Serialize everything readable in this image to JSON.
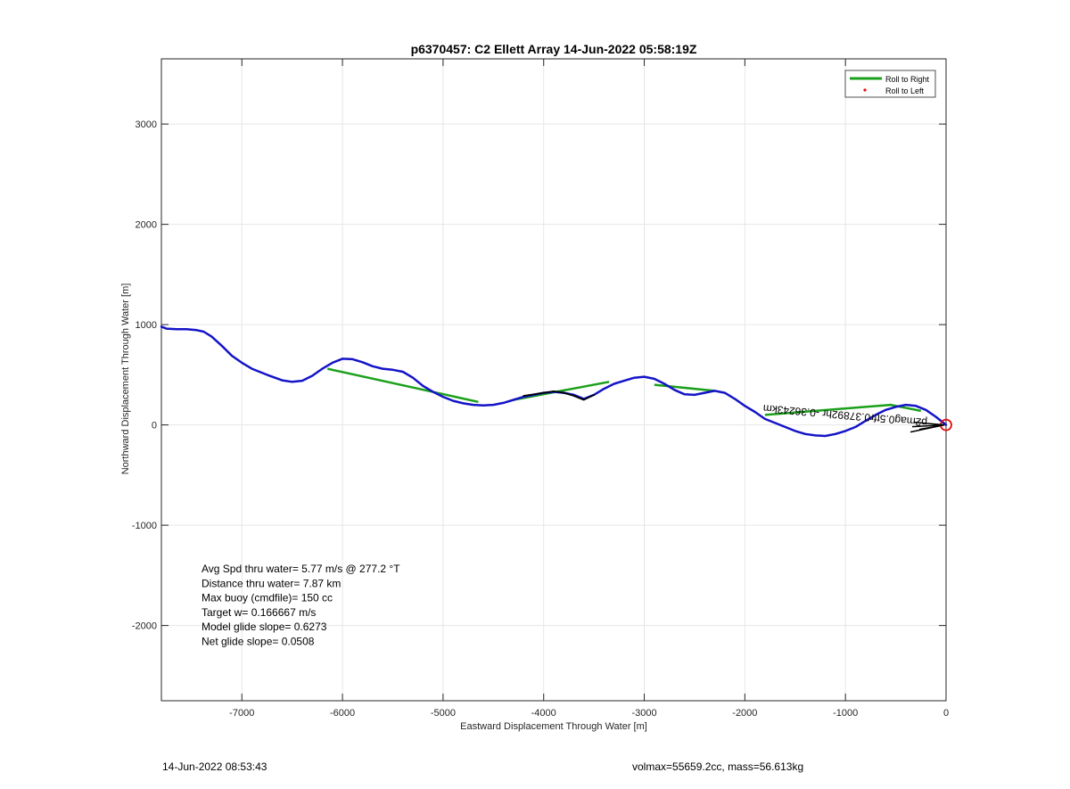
{
  "chart_data": {
    "type": "line",
    "title": "p6370457: C2 Ellett Array 14-Jun-2022 05:58:19Z",
    "xlabel": "Eastward Displacement Through Water [m]",
    "ylabel": "Northward Displacement Through Water [m]",
    "xlim": [
      -7800,
      0
    ],
    "ylim": [
      -2750,
      3650
    ],
    "x_ticks": [
      -7000,
      -6000,
      -5000,
      -4000,
      -3000,
      -2000,
      -1000,
      0
    ],
    "y_ticks": [
      -2000,
      -1000,
      0,
      1000,
      2000,
      3000
    ],
    "grid": true,
    "legend": {
      "placement": "top-right",
      "entries": [
        {
          "label": "Roll to Right",
          "color": "#1aa01a",
          "marker": "line"
        },
        {
          "label": "Roll to Left",
          "color": "#e01010",
          "marker": "dot"
        }
      ]
    },
    "series": [
      {
        "name": "Roll to Right",
        "color": "#1aa01a",
        "segments": [
          [
            [
              -6150,
              560
            ],
            [
              -4650,
              230
            ]
          ],
          [
            [
              -4300,
              250
            ],
            [
              -3350,
              430
            ]
          ],
          [
            [
              -2900,
              400
            ],
            [
              -2300,
              340
            ]
          ],
          [
            [
              -1800,
              100
            ],
            [
              -550,
              200
            ],
            [
              -250,
              140
            ]
          ]
        ]
      },
      {
        "color": "#1414c8",
        "x": [
          -7800,
          -7750,
          -7650,
          -7550,
          -7450,
          -7380,
          -7300,
          -7200,
          -7100,
          -7000,
          -6900,
          -6750,
          -6600,
          -6500,
          -6400,
          -6300,
          -6200,
          -6100,
          -6000,
          -5900,
          -5800,
          -5700,
          -5600,
          -5500,
          -5400,
          -5300,
          -5200,
          -5100,
          -5000,
          -4900,
          -4800,
          -4700,
          -4600,
          -4500,
          -4400,
          -4300,
          -4200,
          -4100,
          -4000,
          -3900,
          -3800,
          -3700,
          -3600,
          -3500,
          -3400,
          -3300,
          -3200,
          -3100,
          -3000,
          -2900,
          -2800,
          -2700,
          -2600,
          -2500,
          -2400,
          -2300,
          -2200,
          -2100,
          -2000,
          -1900,
          -1800,
          -1700,
          -1600,
          -1500,
          -1400,
          -1300,
          -1200,
          -1100,
          -1000,
          -900,
          -800,
          -700,
          -600,
          -500,
          -400,
          -300,
          -200,
          -100,
          0
        ],
        "y": [
          980,
          960,
          955,
          955,
          945,
          930,
          880,
          790,
          690,
          620,
          560,
          500,
          445,
          430,
          440,
          490,
          560,
          620,
          660,
          655,
          625,
          585,
          560,
          550,
          530,
          470,
          390,
          330,
          280,
          240,
          215,
          200,
          195,
          200,
          220,
          250,
          280,
          300,
          320,
          330,
          320,
          300,
          260,
          300,
          360,
          410,
          440,
          470,
          480,
          460,
          410,
          350,
          305,
          300,
          320,
          340,
          320,
          260,
          190,
          130,
          60,
          20,
          -20,
          -60,
          -90,
          -105,
          -110,
          -90,
          -60,
          -20,
          40,
          100,
          150,
          180,
          200,
          190,
          150,
          80,
          0
        ]
      },
      {
        "color": "#000000",
        "x": [
          -4200,
          -4000,
          -3900,
          -3800,
          -3700,
          -3600,
          -3500
        ],
        "y": [
          290,
          320,
          335,
          320,
          290,
          250,
          300
        ]
      }
    ],
    "markers": [
      {
        "x": 0,
        "y": 0,
        "shape": "circle",
        "color": "#e01010"
      }
    ],
    "annotations": [
      {
        "text": "Avg Spd thru water=  5.77 m/s @ 277.2 °T"
      },
      {
        "text": "Distance thru water=  7.87 km"
      },
      {
        "text": "Max buoy (cmdfile)= 150 cc"
      },
      {
        "text": "Target w= 0.166667 m/s"
      },
      {
        "text": "Model glide slope= 0.6273"
      },
      {
        "text": "Net glide slope= 0.0508"
      }
    ],
    "rotated_label": "p2mag0.5tfr0.37892hr -0.36243km"
  },
  "footer": {
    "timestamp": "14-Jun-2022 08:53:43",
    "info": "volmax=55659.2cc, mass=56.613kg"
  }
}
